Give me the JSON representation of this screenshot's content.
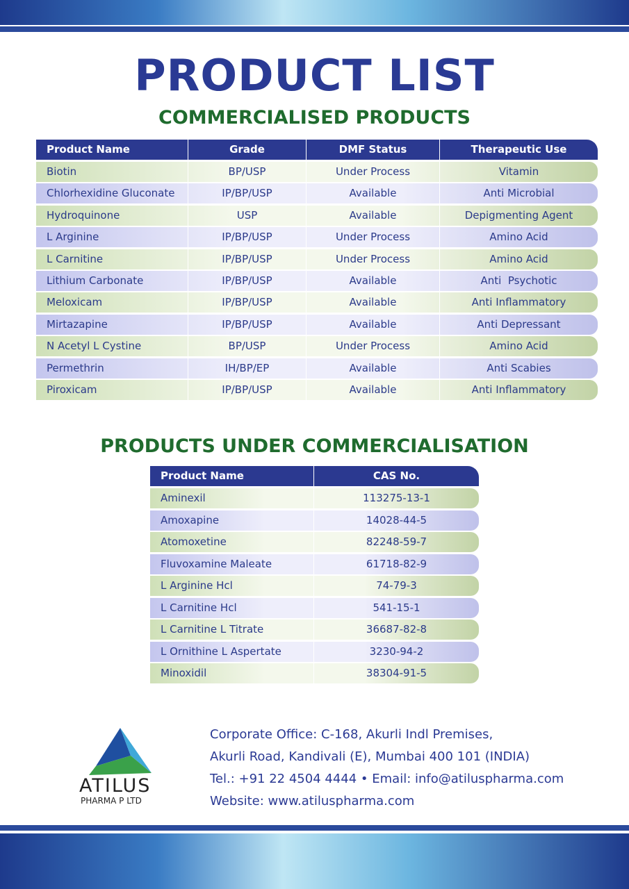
{
  "header": {
    "title": "PRODUCT LIST"
  },
  "commercialised": {
    "heading": "COMMERCIALISED PRODUCTS",
    "columns": [
      "Product Name",
      "Grade",
      "DMF Status",
      "Therapeutic Use"
    ],
    "rows": [
      [
        "Biotin",
        "BP/USP",
        "Under Process",
        "Vitamin"
      ],
      [
        "Chlorhexidine Gluconate",
        "IP/BP/USP",
        "Available",
        "Anti Microbial"
      ],
      [
        "Hydroquinone",
        "USP",
        "Available",
        "Depigmenting Agent"
      ],
      [
        "L Arginine",
        "IP/BP/USP",
        "Under Process",
        "Amino Acid"
      ],
      [
        "L Carnitine",
        "IP/BP/USP",
        "Under Process",
        "Amino Acid"
      ],
      [
        "Lithium Carbonate",
        "IP/BP/USP",
        "Available",
        "Anti  Psychotic"
      ],
      [
        "Meloxicam",
        "IP/BP/USP",
        "Available",
        "Anti Inflammatory"
      ],
      [
        "Mirtazapine",
        "IP/BP/USP",
        "Available",
        "Anti Depressant"
      ],
      [
        "N Acetyl L Cystine",
        "BP/USP",
        "Under Process",
        "Amino Acid"
      ],
      [
        "Permethrin",
        "IH/BP/EP",
        "Available",
        "Anti Scabies"
      ],
      [
        "Piroxicam",
        "IP/BP/USP",
        "Available",
        "Anti Inflammatory"
      ]
    ]
  },
  "under_commercialisation": {
    "heading": "PRODUCTS UNDER COMMERCIALISATION",
    "columns": [
      "Product Name",
      "CAS No."
    ],
    "rows": [
      [
        "Aminexil",
        "113275-13-1"
      ],
      [
        "Amoxapine",
        "14028-44-5"
      ],
      [
        "Atomoxetine",
        "82248-59-7"
      ],
      [
        "Fluvoxamine Maleate",
        "61718-82-9"
      ],
      [
        "L Arginine Hcl",
        "74-79-3"
      ],
      [
        "L Carnitine Hcl",
        "541-15-1"
      ],
      [
        "L Carnitine L Titrate",
        "36687-82-8"
      ],
      [
        "L Ornithine L Aspertate",
        "3230-94-2"
      ],
      [
        "Minoxidil",
        "38304-91-5"
      ]
    ]
  },
  "footer": {
    "logo_name": "ATILUS",
    "logo_sub": "PHARMA P LTD",
    "lines": [
      "Corporate Office: C-168, Akurli Indl Premises,",
      "Akurli Road, Kandivali (E), Mumbai 400 101 (INDIA)",
      "Tel.: +91 22 4504 4444 • Email: info@atiluspharma.com",
      "Website: www.atiluspharma.com"
    ]
  }
}
